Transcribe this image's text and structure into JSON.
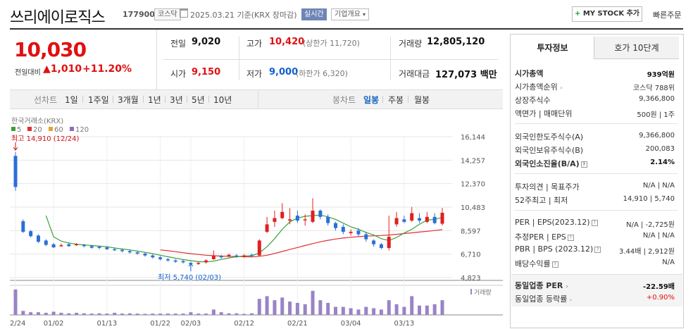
{
  "header": {
    "name": "쓰리에이로직스",
    "code": "177900",
    "market_badge": "코스닥",
    "date_text": "2025.03.21 기준(KRX 장마감)",
    "live_badge": "실시간",
    "company_overview": "기업개요",
    "mystock_label": "MY STOCK 추가",
    "fast_order": "빠른주문"
  },
  "price": {
    "current": "10,030",
    "change_label": "전일대비",
    "change": "1,010",
    "rate": "+11.20%",
    "prev_close_label": "전일",
    "prev_close": "9,020",
    "high_label": "고가",
    "high": "10,420",
    "upper_limit": "(상한가 11,720)",
    "volume_label": "거래량",
    "volume": "12,805,120",
    "open_label": "시가",
    "open": "9,150",
    "low_label": "저가",
    "low": "9,000",
    "lower_limit": "(하한가 6,320)",
    "amount_label": "거래대금",
    "amount": "127,073 백만"
  },
  "periods": [
    "선차트",
    "1일",
    "1주일",
    "3개월",
    "1년",
    "3년",
    "5년",
    "10년"
  ],
  "candle_periods": [
    "봉차트",
    "일봉",
    "주봉",
    "월봉"
  ],
  "panel": {
    "tab_active": "투자정보",
    "tab_other": "호가 10단계",
    "rows": [
      {
        "label": "시가총액",
        "value": "939억원"
      },
      {
        "label": "시가총액순위",
        "value": "코스닥 788위"
      },
      {
        "label": "상장주식수",
        "value": "9,366,800"
      },
      {
        "label": "액면가 | 매매단위",
        "value": "500원 | 1주"
      },
      {
        "label": "외국인한도주식수(A)",
        "value": "9,366,800"
      },
      {
        "label": "외국인보유주식수(B)",
        "value": "200,083"
      },
      {
        "label": "외국인소진율(B/A)",
        "value": "2.14%"
      },
      {
        "label": "투자의견 | 목표주가",
        "value": "N/A | N/A"
      },
      {
        "label": "52주최고 | 최저",
        "value": "14,910 | 5,740"
      },
      {
        "label": "PER | EPS(2023.12)",
        "value": "N/A | -2,725원"
      },
      {
        "label": "추정PER | EPS",
        "value": "N/A | N/A"
      },
      {
        "label": "PBR | BPS (2023.12)",
        "value": "3.44배 | 2,912원"
      },
      {
        "label": "배당수익률",
        "value": "N/A"
      },
      {
        "label": "동일업종 PER",
        "value": "-22.59배"
      },
      {
        "label": "동일업종 등락률",
        "value": "+0.90%"
      }
    ]
  },
  "chart_data": {
    "type": "candlestick",
    "source_label": "한국거래소(KRX)",
    "legend": [
      {
        "name": "5",
        "color": "#3aa03a"
      },
      {
        "name": "20",
        "color": "#e03030"
      },
      {
        "name": "60",
        "color": "#e8a030"
      },
      {
        "name": "120",
        "color": "#8e6cc0"
      }
    ],
    "volume_label": "거래량",
    "y_ticks": [
      "16,144",
      "14,257",
      "12,370",
      "10,483",
      "8,597",
      "6,710",
      "4,823"
    ],
    "y_tick_values": [
      16144,
      14257,
      12370,
      10483,
      8597,
      6710,
      4823
    ],
    "x_ticks": [
      {
        "label": "12/24",
        "i": 0
      },
      {
        "label": "01/02",
        "i": 5
      },
      {
        "label": "01/13",
        "i": 12
      },
      {
        "label": "01/22",
        "i": 19
      },
      {
        "label": "02/03",
        "i": 23
      },
      {
        "label": "02/12",
        "i": 30
      },
      {
        "label": "02/21",
        "i": 37
      },
      {
        "label": "03/04",
        "i": 44
      },
      {
        "label": "03/13",
        "i": 51
      }
    ],
    "high_annotation": "최고 14,910 (12/24)",
    "low_annotation": "최저 5,740 (02/03)",
    "ylim": [
      4823,
      16144
    ],
    "candles": [
      [
        14600,
        12100,
        14910,
        11800
      ],
      [
        9350,
        8500,
        9500,
        8400
      ],
      [
        8550,
        8150,
        8650,
        8050
      ],
      [
        8200,
        7700,
        8300,
        7600
      ],
      [
        7800,
        7450,
        7900,
        7350
      ],
      [
        7500,
        7250,
        7600,
        7200
      ],
      [
        7380,
        7420,
        7550,
        7300
      ],
      [
        7500,
        7350,
        7600,
        7300
      ],
      [
        7450,
        7500,
        7600,
        7380
      ],
      [
        7450,
        7350,
        7520,
        7250
      ],
      [
        7350,
        7220,
        7450,
        7150
      ],
      [
        7300,
        7200,
        7380,
        7100
      ],
      [
        7250,
        7100,
        7350,
        7050
      ],
      [
        7100,
        7050,
        7200,
        6950
      ],
      [
        7050,
        6950,
        7150,
        6850
      ],
      [
        6950,
        6850,
        7050,
        6750
      ],
      [
        6850,
        6750,
        6950,
        6650
      ],
      [
        6750,
        6600,
        6850,
        6500
      ],
      [
        6600,
        6450,
        6700,
        6350
      ],
      [
        6450,
        6300,
        6550,
        6200
      ],
      [
        6300,
        6200,
        6400,
        6100
      ],
      [
        6200,
        6100,
        6300,
        6000
      ],
      [
        6150,
        6050,
        6250,
        5950
      ],
      [
        6000,
        5900,
        6100,
        5740
      ],
      [
        5950,
        6000,
        6100,
        5850
      ],
      [
        6050,
        6200,
        6300,
        5950
      ],
      [
        6300,
        6600,
        7000,
        6250
      ],
      [
        6550,
        6450,
        6650,
        6350
      ],
      [
        6550,
        6650,
        6750,
        6450
      ],
      [
        6600,
        6500,
        6700,
        6400
      ],
      [
        6550,
        6600,
        6700,
        6400
      ],
      [
        6650,
        6580,
        6750,
        6450
      ],
      [
        6600,
        7800,
        7900,
        6500
      ],
      [
        8500,
        9100,
        9700,
        8400
      ],
      [
        9300,
        9600,
        10200,
        8900
      ],
      [
        9600,
        10100,
        10800,
        9500
      ],
      [
        9400,
        9500,
        10400,
        9100
      ],
      [
        9800,
        9400,
        10200,
        9200
      ],
      [
        9500,
        9500,
        9900,
        9000
      ],
      [
        9300,
        10200,
        11200,
        9200
      ],
      [
        10200,
        9700,
        10300,
        9500
      ],
      [
        9700,
        9200,
        9900,
        9000
      ],
      [
        9200,
        8800,
        9300,
        8600
      ],
      [
        8900,
        8500,
        9100,
        8300
      ],
      [
        8400,
        8500,
        8700,
        8200
      ],
      [
        8600,
        8300,
        8800,
        8150
      ],
      [
        8300,
        7900,
        8500,
        7700
      ],
      [
        7800,
        7500,
        7900,
        7300
      ],
      [
        7500,
        7200,
        7600,
        7100
      ],
      [
        7200,
        8100,
        9800,
        7000
      ],
      [
        9100,
        9600,
        10100,
        8900
      ],
      [
        9500,
        9300,
        9800,
        9200
      ],
      [
        9400,
        10000,
        10500,
        9300
      ],
      [
        9600,
        9400,
        10000,
        9200
      ],
      [
        9300,
        9700,
        10100,
        9200
      ],
      [
        9700,
        9200,
        10000,
        9100
      ],
      [
        9150,
        10030,
        10420,
        9000
      ]
    ],
    "ma5": [
      null,
      null,
      null,
      null,
      9800,
      8100,
      7750,
      7600,
      7500,
      7450,
      7400,
      7350,
      7300,
      7200,
      7120,
      7050,
      6950,
      6850,
      6750,
      6620,
      6500,
      6380,
      6270,
      6180,
      6100,
      6080,
      6150,
      6280,
      6400,
      6500,
      6550,
      6580,
      6800,
      7300,
      7950,
      8700,
      9300,
      9600,
      9750,
      9800,
      9850,
      9700,
      9500,
      9200,
      8900,
      8700,
      8450,
      8250,
      7950,
      7800,
      8050,
      8400,
      8700,
      9100,
      9450,
      9500,
      9650
    ],
    "ma20": [
      null,
      null,
      null,
      null,
      null,
      null,
      null,
      null,
      null,
      null,
      null,
      null,
      null,
      null,
      null,
      null,
      null,
      null,
      null,
      7050,
      6980,
      6900,
      6820,
      6740,
      6680,
      6620,
      6580,
      6550,
      6530,
      6510,
      6500,
      6490,
      6530,
      6620,
      6760,
      6920,
      7080,
      7240,
      7400,
      7550,
      7700,
      7820,
      7920,
      8000,
      8060,
      8110,
      8150,
      8180,
      8200,
      8240,
      8300,
      8360,
      8420,
      8480,
      8540,
      8600,
      8680
    ]
  }
}
